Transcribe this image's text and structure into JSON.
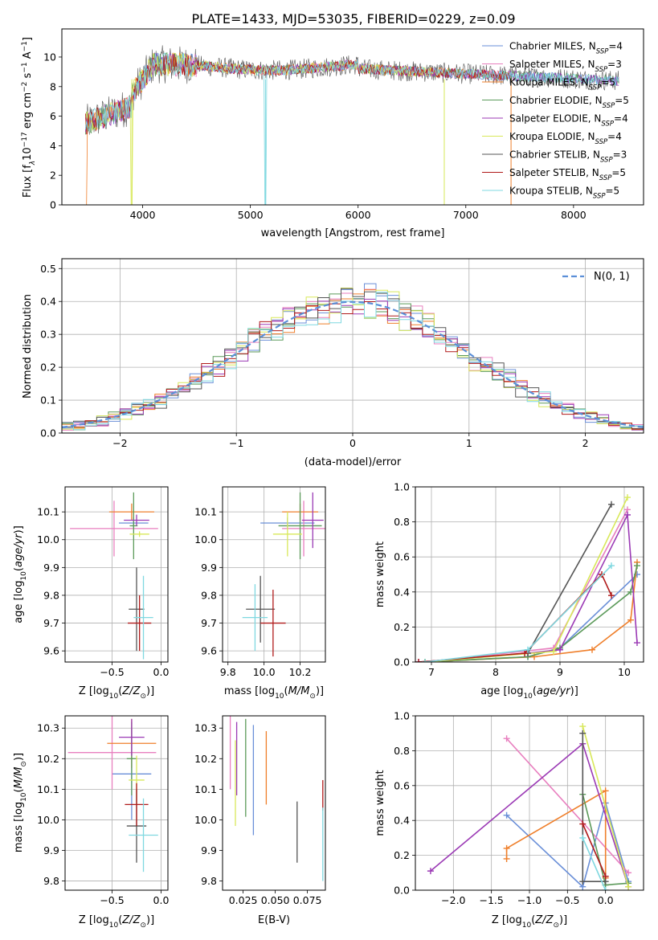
{
  "figure": {
    "title": "PLATE=1433, MJD=53035, FIBERID=0229, z=0.09"
  },
  "legend_entries": [
    {
      "label": "Chabrier MILES, N",
      "sub": "SSP",
      "suffix": "=4",
      "color": "#6a8fd8"
    },
    {
      "label": "Salpeter MILES, N",
      "sub": "SSP",
      "suffix": "=3",
      "color": "#e87fbf"
    },
    {
      "label": "Kroupa MILES, N",
      "sub": "SSP",
      "suffix": "=5",
      "color": "#ef7f2b"
    },
    {
      "label": "Chabrier ELODIE, N",
      "sub": "SSP",
      "suffix": "=5",
      "color": "#5c9a5a"
    },
    {
      "label": "Salpeter ELODIE, N",
      "sub": "SSP",
      "suffix": "=4",
      "color": "#9b3ab5"
    },
    {
      "label": "Kroupa ELODIE, N",
      "sub": "SSP",
      "suffix": "=4",
      "color": "#d8e85a"
    },
    {
      "label": "Chabrier STELIB, N",
      "sub": "SSP",
      "suffix": "=3",
      "color": "#555555"
    },
    {
      "label": "Salpeter STELIB, N",
      "sub": "SSP",
      "suffix": "=5",
      "color": "#b01a1a"
    },
    {
      "label": "Kroupa STELIB, N",
      "sub": "SSP",
      "suffix": "=5",
      "color": "#7fd8e0"
    }
  ],
  "chart_data": [
    {
      "id": "spectrum",
      "type": "line",
      "xlabel": "wavelength [Angstrom, rest frame]",
      "ylabel_main": "Flux [f",
      "ylabel_sub": "λ",
      "ylabel_rest": "10",
      "ylabel_exp": "−17",
      "ylabel_units": " erg cm",
      "ylabel_units_exp": "−2",
      "ylabel_units2": " s",
      "ylabel_units2_exp": "−1",
      "ylabel_units3": " A",
      "ylabel_units3_exp": "−1",
      "ylabel_end": "]",
      "xlim": [
        3250,
        8650
      ],
      "ylim": [
        0,
        11.9
      ],
      "xticks": [
        4000,
        5000,
        6000,
        7000,
        8000
      ],
      "yticks": [
        0,
        2,
        4,
        6,
        8,
        10
      ],
      "grid": false,
      "legend_placement": "right",
      "data_range_x": [
        3470,
        8420
      ],
      "sharp_dips": [
        {
          "x": 3900,
          "y": 0
        },
        {
          "x": 5140,
          "y": 0
        },
        {
          "x": 6800,
          "y": 0
        },
        {
          "x": 7420,
          "y": 0
        }
      ]
    },
    {
      "id": "residual_hist",
      "type": "area",
      "xlabel": "(data-model)/error",
      "ylabel": "Normed distribution",
      "xlim": [
        -2.5,
        2.5
      ],
      "ylim": [
        0,
        0.53
      ],
      "xticks": [
        -2,
        -1,
        0,
        1,
        2
      ],
      "yticks": [
        0.0,
        0.1,
        0.2,
        0.3,
        0.4,
        0.5
      ],
      "grid": true,
      "legend_label": "N(0, 1)",
      "legend_placement": "top-right",
      "bin_width": 0.1
    },
    {
      "id": "age_vs_Z",
      "type": "scatter",
      "xlabel": "Z [log10(Z/Z⊙)]",
      "ylabel": "age  [log10(age/yr)]",
      "xlim": [
        -0.98,
        0.07
      ],
      "ylim": [
        9.56,
        10.19
      ],
      "xticks": [
        -0.5,
        0.0
      ],
      "yticks": [
        9.6,
        9.7,
        9.8,
        9.9,
        10.0,
        10.1
      ],
      "grid": true,
      "points": [
        {
          "color": "#6a8fd8",
          "x": -0.28,
          "y": 10.06,
          "xerr": 0.15,
          "yerr": 0.02
        },
        {
          "color": "#e87fbf",
          "x": -0.48,
          "y": 10.04,
          "xerr": 0.45,
          "yerr": 0.1
        },
        {
          "color": "#ef7f2b",
          "x": -0.3,
          "y": 10.1,
          "xerr": 0.23,
          "yerr": 0.03
        },
        {
          "color": "#5c9a5a",
          "x": -0.28,
          "y": 10.05,
          "xerr": 0.04,
          "yerr": 0.12
        },
        {
          "color": "#9b3ab5",
          "x": -0.25,
          "y": 10.07,
          "xerr": 0.13,
          "yerr": 0.02
        },
        {
          "color": "#d8e85a",
          "x": -0.22,
          "y": 10.02,
          "xerr": 0.1,
          "yerr": 0.01
        },
        {
          "color": "#555555",
          "x": -0.25,
          "y": 9.75,
          "xerr": 0.08,
          "yerr": 0.15
        },
        {
          "color": "#b01a1a",
          "x": -0.22,
          "y": 9.7,
          "xerr": 0.12,
          "yerr": 0.1
        },
        {
          "color": "#7fd8e0",
          "x": -0.18,
          "y": 9.72,
          "xerr": 0.1,
          "yerr": 0.15
        }
      ]
    },
    {
      "id": "age_vs_mass",
      "type": "scatter",
      "xlabel": "mass [log10(M/M⊙)]",
      "xlim": [
        9.77,
        10.34
      ],
      "ylim": [
        9.56,
        10.19
      ],
      "xticks": [
        9.8,
        10.0,
        10.2
      ],
      "yticks": [
        9.6,
        9.7,
        9.8,
        9.9,
        10.0,
        10.1
      ],
      "grid": true,
      "points": [
        {
          "color": "#6a8fd8",
          "x": 10.13,
          "y": 10.06,
          "xerr": 0.15,
          "yerr": 0.02
        },
        {
          "color": "#e87fbf",
          "x": 10.22,
          "y": 10.04,
          "xerr": 0.12,
          "yerr": 0.1
        },
        {
          "color": "#ef7f2b",
          "x": 10.2,
          "y": 10.1,
          "xerr": 0.1,
          "yerr": 0.03
        },
        {
          "color": "#5c9a5a",
          "x": 10.2,
          "y": 10.05,
          "xerr": 0.12,
          "yerr": 0.12
        },
        {
          "color": "#9b3ab5",
          "x": 10.27,
          "y": 10.07,
          "xerr": 0.06,
          "yerr": 0.1
        },
        {
          "color": "#d8e85a",
          "x": 10.13,
          "y": 10.02,
          "xerr": 0.08,
          "yerr": 0.08
        },
        {
          "color": "#555555",
          "x": 9.98,
          "y": 9.75,
          "xerr": 0.08,
          "yerr": 0.12
        },
        {
          "color": "#b01a1a",
          "x": 10.05,
          "y": 9.7,
          "xerr": 0.07,
          "yerr": 0.12
        },
        {
          "color": "#7fd8e0",
          "x": 9.95,
          "y": 9.72,
          "xerr": 0.07,
          "yerr": 0.12
        }
      ]
    },
    {
      "id": "mass_weight_vs_age",
      "type": "line",
      "xlabel": "age  [log10(age/yr)]",
      "ylabel": "mass weight",
      "xlim": [
        6.75,
        10.3
      ],
      "ylim": [
        0.0,
        1.0
      ],
      "xticks": [
        7,
        8,
        9,
        10
      ],
      "yticks": [
        0.0,
        0.2,
        0.4,
        0.6,
        0.8,
        1.0
      ],
      "grid": true,
      "series": [
        {
          "color": "#6a8fd8",
          "x": [
            6.9,
            8.5,
            9.0,
            10.2
          ],
          "y": [
            0.0,
            0.03,
            0.08,
            0.5
          ]
        },
        {
          "color": "#e87fbf",
          "x": [
            6.9,
            8.9,
            10.05
          ],
          "y": [
            0.0,
            0.08,
            0.87
          ]
        },
        {
          "color": "#ef7f2b",
          "x": [
            6.9,
            8.6,
            9.5,
            10.1,
            10.2
          ],
          "y": [
            0.0,
            0.03,
            0.07,
            0.24,
            0.57
          ]
        },
        {
          "color": "#5c9a5a",
          "x": [
            6.9,
            8.5,
            9.0,
            10.1,
            10.2
          ],
          "y": [
            0.0,
            0.03,
            0.08,
            0.4,
            0.55
          ]
        },
        {
          "color": "#9b3ab5",
          "x": [
            6.8,
            8.5,
            9.0,
            10.05,
            10.2
          ],
          "y": [
            0.0,
            0.05,
            0.07,
            0.84,
            0.11
          ]
        },
        {
          "color": "#d8e85a",
          "x": [
            6.9,
            8.9,
            10.05
          ],
          "y": [
            0.0,
            0.06,
            0.94
          ]
        },
        {
          "color": "#555555",
          "x": [
            8.5,
            9.8
          ],
          "y": [
            0.05,
            0.9
          ]
        },
        {
          "color": "#b01a1a",
          "x": [
            6.8,
            8.45,
            9.65,
            9.8
          ],
          "y": [
            0.0,
            0.05,
            0.5,
            0.38
          ]
        },
        {
          "color": "#7fd8e0",
          "x": [
            6.9,
            8.5,
            9.8
          ],
          "y": [
            0.0,
            0.07,
            0.55
          ]
        }
      ]
    },
    {
      "id": "mass_vs_Z",
      "type": "scatter",
      "xlabel": "Z [log10(Z/Z⊙)]",
      "ylabel": "mass [log10(M/M⊙)]",
      "xlim": [
        -0.98,
        0.07
      ],
      "ylim": [
        9.77,
        10.34
      ],
      "xticks": [
        -0.5,
        0.0
      ],
      "yticks": [
        9.8,
        9.9,
        10.0,
        10.1,
        10.2,
        10.3
      ],
      "grid": true,
      "points": [
        {
          "color": "#6a8fd8",
          "x": -0.3,
          "y": 10.15,
          "xerr": 0.2,
          "yerr": 0.15
        },
        {
          "color": "#e87fbf",
          "x": -0.5,
          "y": 10.22,
          "xerr": 0.45,
          "yerr": 0.12
        },
        {
          "color": "#ef7f2b",
          "x": -0.3,
          "y": 10.25,
          "xerr": 0.25,
          "yerr": 0.08
        },
        {
          "color": "#5c9a5a",
          "x": -0.3,
          "y": 10.2,
          "xerr": 0.05,
          "yerr": 0.12
        },
        {
          "color": "#9b3ab5",
          "x": -0.3,
          "y": 10.27,
          "xerr": 0.13,
          "yerr": 0.06
        },
        {
          "color": "#d8e85a",
          "x": -0.25,
          "y": 10.13,
          "xerr": 0.08,
          "yerr": 0.08
        },
        {
          "color": "#555555",
          "x": -0.25,
          "y": 9.98,
          "xerr": 0.1,
          "yerr": 0.12
        },
        {
          "color": "#b01a1a",
          "x": -0.25,
          "y": 10.05,
          "xerr": 0.12,
          "yerr": 0.07
        },
        {
          "color": "#7fd8e0",
          "x": -0.18,
          "y": 9.95,
          "xerr": 0.15,
          "yerr": 0.12
        }
      ]
    },
    {
      "id": "mass_vs_EBV",
      "type": "scatter",
      "xlabel": "E(B-V)",
      "xlim": [
        0.009,
        0.089
      ],
      "ylim": [
        9.77,
        10.34
      ],
      "xticks": [
        0.025,
        0.05,
        0.075
      ],
      "xticklabels": [
        "0.025",
        "0.050",
        "0.075"
      ],
      "yticks": [
        9.8,
        9.9,
        10.0,
        10.1,
        10.2,
        10.3
      ],
      "grid": false,
      "points": [
        {
          "color": "#6a8fd8",
          "x": 0.033,
          "y": 10.13,
          "xerr": 0.0,
          "yerr": 0.18
        },
        {
          "color": "#e87fbf",
          "x": 0.015,
          "y": 10.22,
          "xerr": 0.0,
          "yerr": 0.12
        },
        {
          "color": "#ef7f2b",
          "x": 0.043,
          "y": 10.17,
          "xerr": 0.0,
          "yerr": 0.12
        },
        {
          "color": "#5c9a5a",
          "x": 0.027,
          "y": 10.17,
          "xerr": 0.0,
          "yerr": 0.16
        },
        {
          "color": "#9b3ab5",
          "x": 0.02,
          "y": 10.2,
          "xerr": 0.0,
          "yerr": 0.12
        },
        {
          "color": "#d8e85a",
          "x": 0.019,
          "y": 10.12,
          "xerr": 0.0,
          "yerr": 0.14
        },
        {
          "color": "#555555",
          "x": 0.067,
          "y": 9.96,
          "xerr": 0.0,
          "yerr": 0.1
        },
        {
          "color": "#b01a1a",
          "x": 0.087,
          "y": 10.08,
          "xerr": 0.0,
          "yerr": 0.05
        },
        {
          "color": "#7fd8e0",
          "x": 0.087,
          "y": 9.92,
          "xerr": 0.0,
          "yerr": 0.12
        }
      ]
    },
    {
      "id": "mass_weight_vs_Z",
      "type": "line",
      "xlabel": "Z [log10(Z/Z⊙)]",
      "ylabel": "mass weight",
      "xlim": [
        -2.5,
        0.5
      ],
      "ylim": [
        0.0,
        1.0
      ],
      "xticks": [
        -2.0,
        -1.5,
        -1.0,
        -0.5,
        0.0
      ],
      "xticklabels": [
        "−2.0",
        "−1.5",
        "−1.0",
        "−0.5",
        "0.0"
      ],
      "yticks": [
        0.0,
        0.2,
        0.4,
        0.6,
        0.8,
        1.0
      ],
      "grid": true,
      "series": [
        {
          "color": "#6a8fd8",
          "x": [
            -1.3,
            -0.3,
            0.0,
            0.3
          ],
          "y": [
            0.43,
            0.02,
            0.5,
            0.05
          ]
        },
        {
          "color": "#e87fbf",
          "x": [
            -1.3,
            0.3
          ],
          "y": [
            0.87,
            0.1
          ]
        },
        {
          "color": "#ef7f2b",
          "x": [
            -1.3,
            -1.3,
            0.0,
            0.0
          ],
          "y": [
            0.18,
            0.24,
            0.57,
            0.07
          ]
        },
        {
          "color": "#5c9a5a",
          "x": [
            -0.3,
            0.0,
            0.3
          ],
          "y": [
            0.55,
            0.03,
            0.04
          ]
        },
        {
          "color": "#9b3ab5",
          "x": [
            -2.3,
            -0.3,
            0.3
          ],
          "y": [
            0.11,
            0.84,
            0.02
          ]
        },
        {
          "color": "#d8e85a",
          "x": [
            -0.3,
            0.3
          ],
          "y": [
            0.94,
            0.02
          ]
        },
        {
          "color": "#555555",
          "x": [
            -0.3,
            -0.3,
            0.0
          ],
          "y": [
            0.9,
            0.05,
            0.05
          ]
        },
        {
          "color": "#b01a1a",
          "x": [
            -0.3,
            0.0
          ],
          "y": [
            0.38,
            0.08
          ]
        },
        {
          "color": "#7fd8e0",
          "x": [
            -0.3,
            0.0
          ],
          "y": [
            0.3,
            0.0
          ]
        }
      ]
    }
  ]
}
